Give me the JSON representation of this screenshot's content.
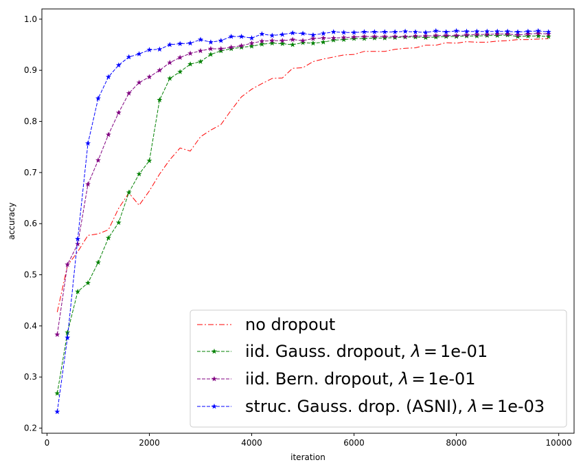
{
  "chart_data": {
    "type": "line",
    "xlabel": "iteration",
    "ylabel": "accuracy",
    "xlim": [
      -100,
      10300
    ],
    "ylim": [
      0.19,
      1.02
    ],
    "xticks": [
      0,
      2000,
      4000,
      6000,
      8000,
      10000
    ],
    "xtick_labels": [
      "0",
      "2000",
      "4000",
      "6000",
      "8000",
      "10000"
    ],
    "yticks": [
      0.2,
      0.3,
      0.4,
      0.5,
      0.6,
      0.7,
      0.8,
      0.9,
      1.0
    ],
    "ytick_labels": [
      "0.2",
      "0.3",
      "0.4",
      "0.5",
      "0.6",
      "0.7",
      "0.8",
      "0.9",
      "1.0"
    ],
    "grid": false,
    "legend_position": "lower-right",
    "x": [
      200,
      400,
      600,
      800,
      1000,
      1200,
      1400,
      1600,
      1800,
      2000,
      2200,
      2400,
      2600,
      2800,
      3000,
      3200,
      3400,
      3600,
      3800,
      4000,
      4200,
      4400,
      4600,
      4800,
      5000,
      5200,
      5400,
      5600,
      5800,
      6000,
      6200,
      6400,
      6600,
      6800,
      7000,
      7200,
      7400,
      7600,
      7800,
      8000,
      8200,
      8400,
      8600,
      8800,
      9000,
      9200,
      9400,
      9600,
      9800
    ],
    "series": [
      {
        "name": "no dropout",
        "color": "#ff0000",
        "dash": "dashdot",
        "marker": "none",
        "values": [
          0.427,
          0.518,
          0.545,
          0.577,
          0.58,
          0.588,
          0.63,
          0.66,
          0.636,
          0.664,
          0.697,
          0.725,
          0.748,
          0.742,
          0.77,
          0.783,
          0.794,
          0.822,
          0.848,
          0.863,
          0.874,
          0.884,
          0.885,
          0.904,
          0.905,
          0.917,
          0.922,
          0.926,
          0.93,
          0.931,
          0.937,
          0.937,
          0.937,
          0.941,
          0.943,
          0.944,
          0.949,
          0.949,
          0.954,
          0.953,
          0.956,
          0.955,
          0.955,
          0.957,
          0.958,
          0.96,
          0.96,
          0.961,
          0.962
        ]
      },
      {
        "name": "iid. Gauss. dropout, λ = 1e-01",
        "color": "#008000",
        "dash": "dashed",
        "marker": "star",
        "values": [
          0.268,
          0.387,
          0.467,
          0.484,
          0.524,
          0.572,
          0.602,
          0.661,
          0.697,
          0.723,
          0.842,
          0.884,
          0.897,
          0.912,
          0.917,
          0.931,
          0.938,
          0.942,
          0.945,
          0.947,
          0.951,
          0.953,
          0.952,
          0.95,
          0.954,
          0.953,
          0.955,
          0.959,
          0.96,
          0.962,
          0.962,
          0.963,
          0.963,
          0.964,
          0.965,
          0.965,
          0.964,
          0.965,
          0.966,
          0.966,
          0.967,
          0.967,
          0.968,
          0.968,
          0.969,
          0.966,
          0.967,
          0.967,
          0.966
        ]
      },
      {
        "name": "iid. Bern. dropout, λ = 1e-01",
        "color": "#800080",
        "dash": "dashed",
        "marker": "star",
        "values": [
          0.383,
          0.52,
          0.56,
          0.677,
          0.724,
          0.774,
          0.817,
          0.855,
          0.876,
          0.887,
          0.9,
          0.915,
          0.925,
          0.933,
          0.938,
          0.942,
          0.942,
          0.945,
          0.948,
          0.953,
          0.957,
          0.958,
          0.958,
          0.96,
          0.958,
          0.962,
          0.963,
          0.963,
          0.964,
          0.965,
          0.966,
          0.966,
          0.966,
          0.966,
          0.966,
          0.967,
          0.967,
          0.968,
          0.968,
          0.968,
          0.969,
          0.97,
          0.97,
          0.971,
          0.971,
          0.969,
          0.971,
          0.972,
          0.971
        ]
      },
      {
        "name": "struc. Gauss. drop. (ASNI), λ = 1e-03",
        "color": "#0000ff",
        "dash": "dashed",
        "marker": "star",
        "values": [
          0.232,
          0.377,
          0.57,
          0.757,
          0.845,
          0.887,
          0.91,
          0.926,
          0.932,
          0.94,
          0.941,
          0.95,
          0.952,
          0.953,
          0.96,
          0.955,
          0.958,
          0.966,
          0.966,
          0.963,
          0.971,
          0.968,
          0.97,
          0.973,
          0.972,
          0.969,
          0.972,
          0.975,
          0.974,
          0.974,
          0.975,
          0.975,
          0.975,
          0.975,
          0.976,
          0.975,
          0.974,
          0.977,
          0.975,
          0.977,
          0.976,
          0.976,
          0.976,
          0.976,
          0.976,
          0.975,
          0.976,
          0.977,
          0.975
        ]
      }
    ],
    "legend": {
      "entries": [
        {
          "prefix": "no dropout",
          "lambda": ""
        },
        {
          "prefix": "iid. Gauss. dropout, ",
          "lambda": "1e-01"
        },
        {
          "prefix": "iid. Bern. dropout, ",
          "lambda": "1e-01"
        },
        {
          "prefix": "struc. Gauss. drop. (ASNI), ",
          "lambda": "1e-03"
        }
      ]
    }
  }
}
